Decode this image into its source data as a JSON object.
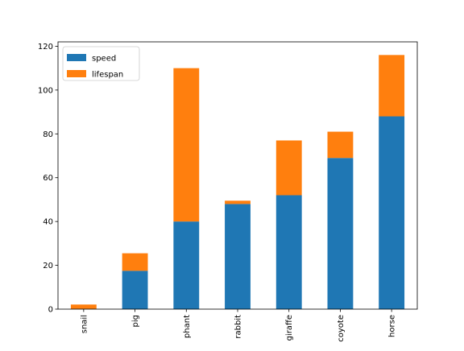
{
  "chart_data": {
    "type": "bar",
    "stacked": true,
    "categories": [
      "snail",
      "pig",
      "phant",
      "rabbit",
      "giraffe",
      "coyote",
      "horse"
    ],
    "series": [
      {
        "name": "speed",
        "color": "#1f77b4",
        "values": [
          0.1,
          17.5,
          40,
          48,
          52,
          69,
          88
        ]
      },
      {
        "name": "lifespan",
        "color": "#ff7f0e",
        "values": [
          2,
          8,
          70,
          1.5,
          25,
          12,
          28
        ]
      }
    ],
    "yticks": [
      0,
      20,
      40,
      60,
      80,
      100,
      120
    ],
    "ylim": [
      0,
      122
    ],
    "title": "",
    "xlabel": "",
    "ylabel": "",
    "grid": false,
    "legend_position": "upper-left"
  }
}
